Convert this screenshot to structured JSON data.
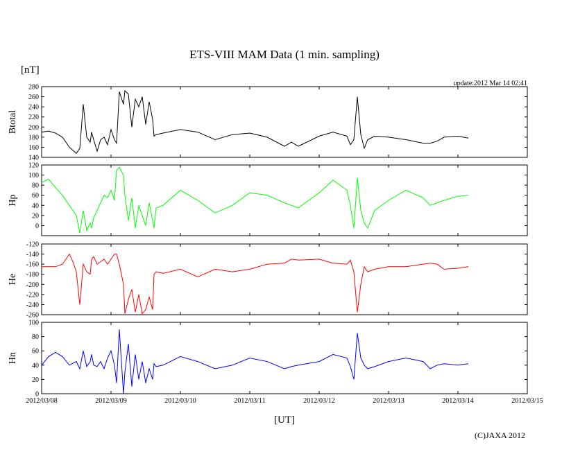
{
  "chart_data": {
    "type": "line",
    "title": "ETS-VIII MAM Data (1 min. sampling)",
    "unit_label": "[nT]",
    "update_text": "update:2012 Mar 14 02:41",
    "xlabel": "[UT]",
    "copyright": "(C)JAXA 2012",
    "x_ticks": [
      "2012/03/08",
      "2012/03/09",
      "2012/03/10",
      "2012/03/11",
      "2012/03/12",
      "2012/03/13",
      "2012/03/14",
      "2012/03/15"
    ],
    "xlim_days": [
      0,
      7
    ],
    "panels": [
      {
        "name": "Btotal",
        "ylabel": "Btotal",
        "color": "#000000",
        "ylim": [
          140,
          280
        ],
        "y_ticks": [
          140,
          160,
          180,
          200,
          220,
          240,
          260,
          280
        ],
        "series": {
          "x": [
            0,
            0.1,
            0.2,
            0.3,
            0.4,
            0.5,
            0.55,
            0.6,
            0.65,
            0.7,
            0.72,
            0.75,
            0.8,
            0.85,
            0.9,
            0.95,
            1.0,
            1.05,
            1.08,
            1.12,
            1.18,
            1.2,
            1.25,
            1.3,
            1.35,
            1.4,
            1.45,
            1.5,
            1.55,
            1.6,
            1.62,
            1.65,
            1.75,
            2.0,
            2.25,
            2.5,
            2.75,
            3.0,
            3.25,
            3.5,
            3.6,
            3.7,
            4.0,
            4.2,
            4.4,
            4.45,
            4.5,
            4.55,
            4.6,
            4.65,
            4.7,
            4.8,
            5.0,
            5.25,
            5.5,
            5.6,
            5.7,
            5.8,
            6.0,
            6.15
          ],
          "y": [
            190,
            192,
            188,
            180,
            160,
            148,
            158,
            245,
            180,
            170,
            190,
            175,
            152,
            175,
            180,
            165,
            195,
            175,
            168,
            270,
            245,
            272,
            265,
            200,
            255,
            240,
            260,
            205,
            250,
            215,
            182,
            185,
            188,
            195,
            190,
            175,
            185,
            188,
            180,
            162,
            170,
            162,
            182,
            190,
            182,
            165,
            175,
            260,
            185,
            158,
            175,
            182,
            180,
            175,
            168,
            168,
            172,
            180,
            182,
            178
          ]
        }
      },
      {
        "name": "Hp",
        "ylabel": "Hp",
        "color": "#00ff00",
        "ylim": [
          -20,
          120
        ],
        "y_ticks": [
          0,
          20,
          40,
          60,
          80,
          100,
          120
        ],
        "series": {
          "x": [
            0,
            0.1,
            0.2,
            0.3,
            0.4,
            0.5,
            0.55,
            0.6,
            0.65,
            0.7,
            0.72,
            0.75,
            0.8,
            0.85,
            0.9,
            0.95,
            1.0,
            1.05,
            1.08,
            1.12,
            1.18,
            1.2,
            1.25,
            1.3,
            1.35,
            1.4,
            1.45,
            1.5,
            1.55,
            1.6,
            1.62,
            1.65,
            1.75,
            2.0,
            2.25,
            2.5,
            2.75,
            3.0,
            3.25,
            3.5,
            3.6,
            3.7,
            4.0,
            4.2,
            4.4,
            4.45,
            4.5,
            4.55,
            4.6,
            4.65,
            4.7,
            4.8,
            5.0,
            5.25,
            5.5,
            5.6,
            5.7,
            5.8,
            6.0,
            6.15
          ],
          "y": [
            85,
            92,
            75,
            60,
            40,
            20,
            -15,
            30,
            -10,
            5,
            -5,
            15,
            30,
            45,
            60,
            55,
            70,
            50,
            110,
            115,
            100,
            60,
            10,
            55,
            -5,
            40,
            20,
            0,
            45,
            10,
            -5,
            35,
            40,
            70,
            50,
            25,
            40,
            65,
            60,
            45,
            40,
            35,
            65,
            90,
            70,
            40,
            -5,
            95,
            30,
            5,
            -5,
            30,
            50,
            70,
            55,
            40,
            45,
            50,
            58,
            60
          ]
        }
      },
      {
        "name": "He",
        "ylabel": "He",
        "color": "#ff0000",
        "ylim": [
          -260,
          -120
        ],
        "y_ticks": [
          -260,
          -240,
          -220,
          -200,
          -180,
          -160,
          -140,
          -120
        ],
        "series": {
          "x": [
            0,
            0.1,
            0.2,
            0.3,
            0.4,
            0.45,
            0.5,
            0.55,
            0.6,
            0.65,
            0.7,
            0.72,
            0.75,
            0.8,
            0.85,
            0.9,
            0.95,
            1.0,
            1.05,
            1.08,
            1.12,
            1.18,
            1.2,
            1.25,
            1.3,
            1.35,
            1.4,
            1.45,
            1.5,
            1.55,
            1.6,
            1.62,
            1.65,
            1.75,
            2.0,
            2.25,
            2.5,
            2.75,
            3.0,
            3.25,
            3.5,
            3.6,
            3.7,
            4.0,
            4.2,
            4.4,
            4.45,
            4.5,
            4.55,
            4.6,
            4.65,
            4.7,
            4.8,
            5.0,
            5.25,
            5.5,
            5.6,
            5.7,
            5.8,
            6.0,
            6.15
          ],
          "y": [
            -165,
            -165,
            -165,
            -160,
            -140,
            -155,
            -175,
            -240,
            -160,
            -175,
            -180,
            -150,
            -145,
            -160,
            -155,
            -150,
            -160,
            -150,
            -140,
            -140,
            -160,
            -200,
            -258,
            -230,
            -210,
            -255,
            -220,
            -258,
            -250,
            -225,
            -250,
            -180,
            -175,
            -178,
            -170,
            -185,
            -170,
            -175,
            -170,
            -160,
            -158,
            -150,
            -152,
            -150,
            -158,
            -160,
            -152,
            -175,
            -255,
            -200,
            -165,
            -175,
            -170,
            -165,
            -165,
            -160,
            -158,
            -160,
            -170,
            -168,
            -165
          ]
        }
      },
      {
        "name": "Hn",
        "ylabel": "Hn",
        "color": "#0000ff",
        "ylim": [
          0,
          100
        ],
        "y_ticks": [
          0,
          20,
          40,
          60,
          80,
          100
        ],
        "series": {
          "x": [
            0,
            0.1,
            0.2,
            0.3,
            0.4,
            0.5,
            0.55,
            0.6,
            0.65,
            0.7,
            0.72,
            0.75,
            0.8,
            0.85,
            0.9,
            0.95,
            1.0,
            1.05,
            1.08,
            1.12,
            1.18,
            1.2,
            1.25,
            1.3,
            1.35,
            1.4,
            1.45,
            1.5,
            1.55,
            1.6,
            1.62,
            1.65,
            1.75,
            2.0,
            2.25,
            2.5,
            2.75,
            3.0,
            3.25,
            3.5,
            3.6,
            3.7,
            4.0,
            4.2,
            4.4,
            4.45,
            4.5,
            4.55,
            4.6,
            4.65,
            4.7,
            4.8,
            5.0,
            5.25,
            5.5,
            5.6,
            5.7,
            5.8,
            6.0,
            6.15
          ],
          "y": [
            40,
            52,
            58,
            52,
            40,
            45,
            35,
            60,
            38,
            45,
            55,
            40,
            38,
            45,
            35,
            50,
            60,
            40,
            15,
            90,
            0,
            30,
            70,
            10,
            55,
            20,
            45,
            15,
            35,
            20,
            42,
            38,
            40,
            52,
            45,
            35,
            40,
            50,
            45,
            35,
            38,
            40,
            45,
            55,
            50,
            38,
            20,
            85,
            50,
            40,
            35,
            38,
            45,
            50,
            45,
            35,
            40,
            42,
            40,
            42
          ]
        }
      }
    ]
  }
}
